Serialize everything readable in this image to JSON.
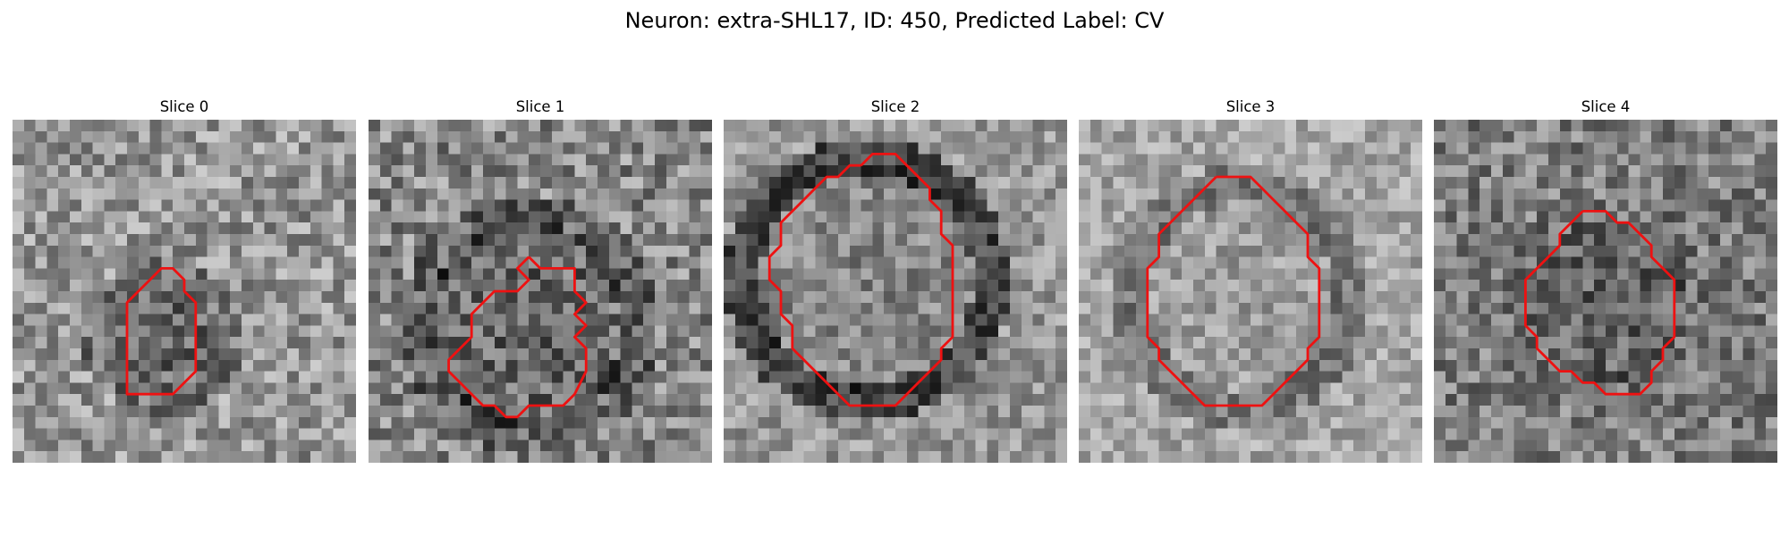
{
  "figure": {
    "title": "Neuron: extra-SHL17, ID: 450, Predicted Label: CV"
  },
  "contour_color": "#ee1111",
  "panels": [
    {
      "title": "Slice 0",
      "image": "grayscale EM patch, granular noise; darker blob of pixels slightly below center",
      "contour": [
        [
          12,
          14
        ],
        [
          13,
          13
        ],
        [
          14,
          13
        ],
        [
          15,
          14
        ],
        [
          15,
          15
        ],
        [
          16,
          16
        ],
        [
          16,
          18
        ],
        [
          16,
          20
        ],
        [
          16,
          22
        ],
        [
          15,
          23
        ],
        [
          14,
          24
        ],
        [
          13,
          24
        ],
        [
          12,
          24
        ],
        [
          11,
          24
        ],
        [
          10,
          24
        ],
        [
          10,
          23
        ],
        [
          10,
          22
        ],
        [
          10,
          20
        ],
        [
          10,
          18
        ],
        [
          10,
          16
        ],
        [
          11,
          15
        ],
        [
          12,
          14
        ]
      ]
    },
    {
      "title": "Slice 1",
      "image": "grayscale EM patch with darker ring-like texture; irregular lobed region in lower center",
      "contour": [
        [
          14,
          12
        ],
        [
          15,
          13
        ],
        [
          16,
          13
        ],
        [
          17,
          13
        ],
        [
          18,
          13
        ],
        [
          18,
          15
        ],
        [
          19,
          16
        ],
        [
          18,
          17
        ],
        [
          19,
          18
        ],
        [
          18,
          19
        ],
        [
          19,
          20
        ],
        [
          19,
          22
        ],
        [
          18,
          24
        ],
        [
          17,
          25
        ],
        [
          16,
          25
        ],
        [
          15,
          25
        ],
        [
          14,
          25
        ],
        [
          13,
          26
        ],
        [
          12,
          26
        ],
        [
          11,
          25
        ],
        [
          10,
          25
        ],
        [
          9,
          24
        ],
        [
          8,
          23
        ],
        [
          7,
          22
        ],
        [
          7,
          21
        ],
        [
          8,
          20
        ],
        [
          9,
          19
        ],
        [
          9,
          17
        ],
        [
          10,
          16
        ],
        [
          11,
          15
        ],
        [
          12,
          15
        ],
        [
          13,
          15
        ],
        [
          14,
          14
        ],
        [
          13,
          13
        ],
        [
          14,
          12
        ]
      ]
    },
    {
      "title": "Slice 2",
      "image": "grayscale EM patch with a thick dark circular membrane and lighter interior",
      "contour": [
        [
          12,
          4
        ],
        [
          13,
          3
        ],
        [
          14,
          3
        ],
        [
          15,
          3
        ],
        [
          16,
          4
        ],
        [
          17,
          5
        ],
        [
          18,
          6
        ],
        [
          18,
          7
        ],
        [
          19,
          8
        ],
        [
          19,
          10
        ],
        [
          20,
          11
        ],
        [
          20,
          14
        ],
        [
          20,
          16
        ],
        [
          20,
          18
        ],
        [
          20,
          19
        ],
        [
          19,
          20
        ],
        [
          19,
          21
        ],
        [
          18,
          22
        ],
        [
          17,
          23
        ],
        [
          16,
          24
        ],
        [
          15,
          25
        ],
        [
          14,
          25
        ],
        [
          13,
          25
        ],
        [
          12,
          25
        ],
        [
          11,
          25
        ],
        [
          10,
          24
        ],
        [
          9,
          23
        ],
        [
          8,
          22
        ],
        [
          7,
          21
        ],
        [
          6,
          20
        ],
        [
          6,
          18
        ],
        [
          5,
          17
        ],
        [
          5,
          15
        ],
        [
          4,
          14
        ],
        [
          4,
          12
        ],
        [
          5,
          11
        ],
        [
          5,
          9
        ],
        [
          6,
          8
        ],
        [
          7,
          7
        ],
        [
          8,
          6
        ],
        [
          9,
          5
        ],
        [
          10,
          5
        ],
        [
          11,
          4
        ],
        [
          12,
          4
        ]
      ]
    },
    {
      "title": "Slice 3",
      "image": "grayscale EM patch, lighter background with a faint dark circular boundary",
      "contour": [
        [
          12,
          5
        ],
        [
          13,
          5
        ],
        [
          14,
          5
        ],
        [
          15,
          5
        ],
        [
          16,
          6
        ],
        [
          17,
          7
        ],
        [
          18,
          8
        ],
        [
          19,
          9
        ],
        [
          20,
          10
        ],
        [
          20,
          12
        ],
        [
          21,
          13
        ],
        [
          21,
          15
        ],
        [
          21,
          17
        ],
        [
          21,
          19
        ],
        [
          20,
          20
        ],
        [
          20,
          21
        ],
        [
          19,
          22
        ],
        [
          18,
          23
        ],
        [
          17,
          24
        ],
        [
          16,
          25
        ],
        [
          15,
          25
        ],
        [
          14,
          25
        ],
        [
          13,
          25
        ],
        [
          12,
          25
        ],
        [
          11,
          25
        ],
        [
          10,
          24
        ],
        [
          9,
          23
        ],
        [
          8,
          22
        ],
        [
          7,
          21
        ],
        [
          7,
          20
        ],
        [
          6,
          19
        ],
        [
          6,
          17
        ],
        [
          6,
          15
        ],
        [
          6,
          13
        ],
        [
          7,
          12
        ],
        [
          7,
          10
        ],
        [
          8,
          9
        ],
        [
          9,
          8
        ],
        [
          10,
          7
        ],
        [
          11,
          6
        ],
        [
          12,
          5
        ]
      ]
    },
    {
      "title": "Slice 4",
      "image": "grayscale EM patch, darker mottled texture with a dark diffuse blob in center",
      "contour": [
        [
          13,
          8
        ],
        [
          14,
          8
        ],
        [
          15,
          8
        ],
        [
          16,
          9
        ],
        [
          17,
          9
        ],
        [
          18,
          10
        ],
        [
          19,
          11
        ],
        [
          19,
          12
        ],
        [
          20,
          13
        ],
        [
          21,
          14
        ],
        [
          21,
          16
        ],
        [
          21,
          18
        ],
        [
          21,
          19
        ],
        [
          20,
          20
        ],
        [
          20,
          21
        ],
        [
          19,
          22
        ],
        [
          19,
          23
        ],
        [
          18,
          24
        ],
        [
          17,
          24
        ],
        [
          16,
          24
        ],
        [
          15,
          24
        ],
        [
          14,
          23
        ],
        [
          13,
          23
        ],
        [
          12,
          22
        ],
        [
          11,
          22
        ],
        [
          10,
          21
        ],
        [
          9,
          20
        ],
        [
          9,
          19
        ],
        [
          8,
          18
        ],
        [
          8,
          16
        ],
        [
          8,
          14
        ],
        [
          9,
          13
        ],
        [
          10,
          12
        ],
        [
          11,
          11
        ],
        [
          11,
          10
        ],
        [
          12,
          9
        ],
        [
          13,
          8
        ]
      ]
    }
  ]
}
